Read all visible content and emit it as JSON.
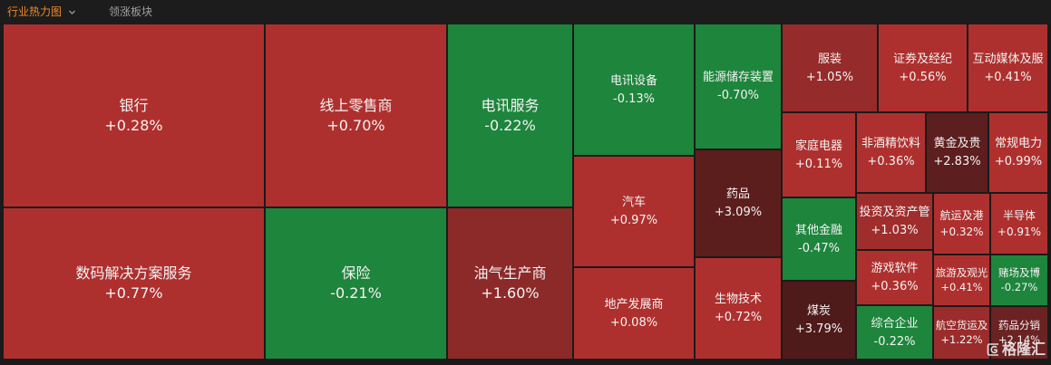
{
  "header": {
    "tabs": [
      {
        "label": "行业热力图",
        "selected": true,
        "icon": "chevron-down-icon"
      },
      {
        "label": "领涨板块",
        "selected": false
      }
    ]
  },
  "colors": {
    "background": "#1a1a1a",
    "tab_active": "#f0892a",
    "tab_inactive": "#a0a0a0",
    "up": "#ae302e",
    "down": "#1e853c"
  },
  "heatmap": {
    "tiles": [
      {
        "name": "银行",
        "change": "+0.28%",
        "color": "#ae302e"
      },
      {
        "name": "数码解决方案服务",
        "change": "+0.77%",
        "color": "#ae302e"
      },
      {
        "name": "线上零售商",
        "change": "+0.70%",
        "color": "#ae302e"
      },
      {
        "name": "保险",
        "change": "-0.21%",
        "color": "#1e853c"
      },
      {
        "name": "电讯服务",
        "change": "-0.22%",
        "color": "#1e853c"
      },
      {
        "name": "油气生产商",
        "change": "+1.60%",
        "color": "#8c2a29"
      },
      {
        "name": "电讯设备",
        "change": "-0.13%",
        "color": "#1e853c"
      },
      {
        "name": "汽车",
        "change": "+0.97%",
        "color": "#ae302e"
      },
      {
        "name": "地产发展商",
        "change": "+0.08%",
        "color": "#ae302e"
      },
      {
        "name": "能源储存装置",
        "change": "-0.70%",
        "color": "#1e853c"
      },
      {
        "name": "药品",
        "change": "+3.09%",
        "color": "#5c1e1d"
      },
      {
        "name": "生物技术",
        "change": "+0.72%",
        "color": "#ae302e"
      },
      {
        "name": "服装",
        "change": "+1.05%",
        "color": "#952b2a"
      },
      {
        "name": "证券及经纪",
        "change": "+0.56%",
        "color": "#ae302e"
      },
      {
        "name": "互动媒体及服",
        "change": "+0.41%",
        "color": "#ae302e"
      },
      {
        "name": "家庭电器",
        "change": "+0.11%",
        "color": "#ae302e"
      },
      {
        "name": "其他金融",
        "change": "-0.47%",
        "color": "#1e853c"
      },
      {
        "name": "煤炭",
        "change": "+3.79%",
        "color": "#4f1a1a"
      },
      {
        "name": "非酒精饮料",
        "change": "+0.36%",
        "color": "#ae302e"
      },
      {
        "name": "黄金及贵",
        "change": "+2.83%",
        "color": "#5c1e1e"
      },
      {
        "name": "常规电力",
        "change": "+0.99%",
        "color": "#ae302e"
      },
      {
        "name": "投资及资产管",
        "change": "+1.03%",
        "color": "#9f2d2c"
      },
      {
        "name": "航运及港",
        "change": "+0.32%",
        "color": "#ae302e"
      },
      {
        "name": "半导体",
        "change": "+0.91%",
        "color": "#ae302e"
      },
      {
        "name": "游戏软件",
        "change": "+0.36%",
        "color": "#ae302e"
      },
      {
        "name": "旅游及观光",
        "change": "+0.41%",
        "color": "#ae302e"
      },
      {
        "name": "赌场及博",
        "change": "-0.27%",
        "color": "#1e853c"
      },
      {
        "name": "综合企业",
        "change": "-0.22%",
        "color": "#1e853c"
      },
      {
        "name": "航空货运及",
        "change": "+1.22%",
        "color": "#9a2c2b"
      },
      {
        "name": "药品分销",
        "change": "+2.14%",
        "color": "#6b2222"
      }
    ]
  },
  "watermark": {
    "logo_icon": "gelonghui-logo-icon",
    "logo_letter": "G",
    "text": "格隆汇"
  }
}
